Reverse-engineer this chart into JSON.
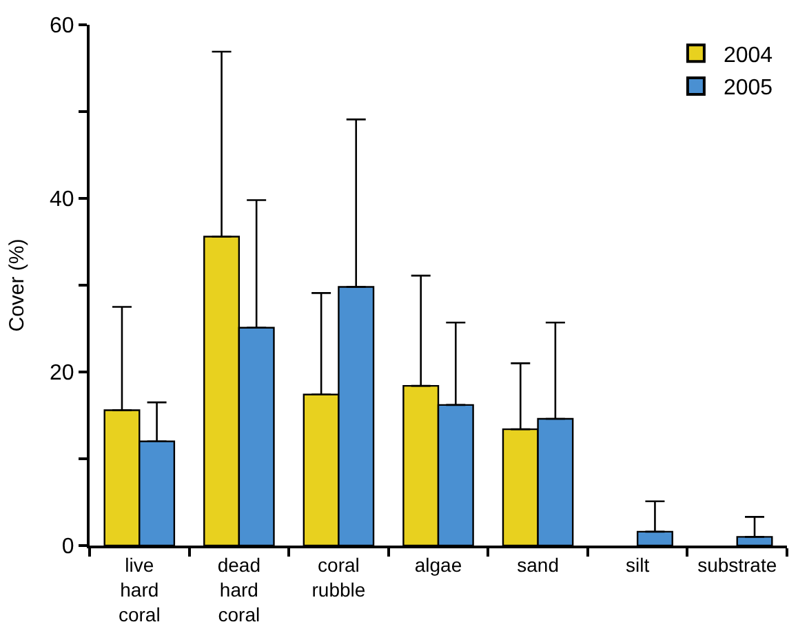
{
  "chart_data": {
    "type": "bar",
    "ylabel": "Cover (%)",
    "categories": [
      "live hard coral",
      "dead hard coral",
      "coral rubble",
      "algae",
      "sand",
      "silt",
      "substrate"
    ],
    "series": [
      {
        "name": "2004",
        "color": "#e8d11f",
        "values": [
          15.6,
          35.6,
          17.4,
          18.4,
          13.4,
          null,
          null
        ],
        "errors": [
          [
            15.6,
            27.5
          ],
          [
            35.6,
            56.9
          ],
          [
            17.4,
            29.1
          ],
          [
            18.4,
            31.1
          ],
          [
            13.4,
            21.0
          ],
          null,
          null
        ]
      },
      {
        "name": "2005",
        "color": "#4a90d2",
        "values": [
          12.0,
          25.1,
          29.8,
          16.2,
          14.6,
          1.6,
          1.0
        ],
        "errors": [
          [
            12.0,
            16.5
          ],
          [
            25.1,
            39.8
          ],
          [
            29.8,
            49.1
          ],
          [
            16.2,
            25.7
          ],
          [
            14.6,
            25.7
          ],
          [
            1.6,
            5.1
          ],
          [
            1.0,
            3.3
          ]
        ]
      }
    ],
    "ylim": [
      0,
      60
    ],
    "yticks": [
      0,
      {
        "value": 10,
        "label": null
      },
      20,
      {
        "value": 30,
        "label": null
      },
      40,
      {
        "value": 50,
        "label": null
      },
      60
    ],
    "legend": "top right"
  }
}
